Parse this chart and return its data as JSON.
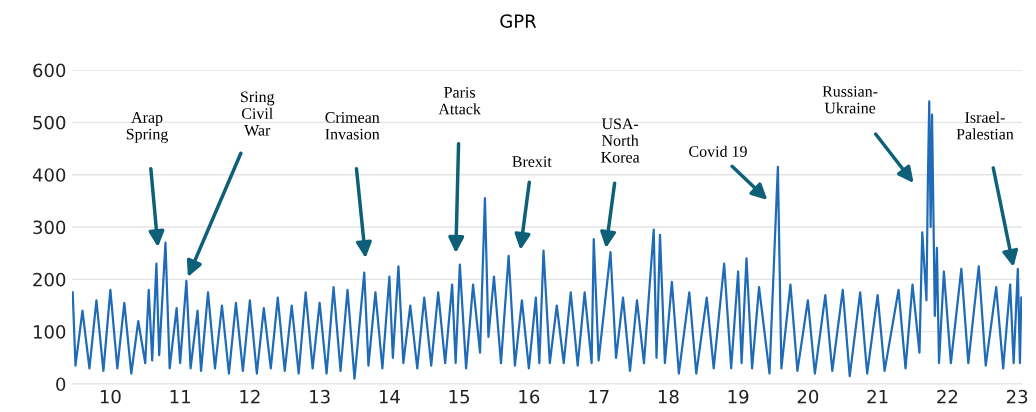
{
  "chart_data": {
    "type": "line",
    "title": "GPR",
    "series": [
      {
        "color": "#1f6bb8",
        "x": [
          9.46,
          9.5,
          9.6,
          9.7,
          9.8,
          9.9,
          10.0,
          10.1,
          10.2,
          10.3,
          10.4,
          10.5,
          10.55,
          10.6,
          10.66,
          10.7,
          10.79,
          10.85,
          10.95,
          11.0,
          11.09,
          11.15,
          11.25,
          11.3,
          11.4,
          11.5,
          11.6,
          11.7,
          11.8,
          11.9,
          12.0,
          12.1,
          12.2,
          12.3,
          12.4,
          12.5,
          12.6,
          12.7,
          12.8,
          12.9,
          13.0,
          13.1,
          13.2,
          13.3,
          13.4,
          13.5,
          13.64,
          13.7,
          13.8,
          13.9,
          14.0,
          14.05,
          14.13,
          14.2,
          14.3,
          14.4,
          14.5,
          14.6,
          14.7,
          14.8,
          14.9,
          14.95,
          15.01,
          15.1,
          15.2,
          15.3,
          15.37,
          15.42,
          15.5,
          15.6,
          15.71,
          15.8,
          15.9,
          16.0,
          16.1,
          16.15,
          16.21,
          16.3,
          16.4,
          16.5,
          16.6,
          16.7,
          16.8,
          16.9,
          16.93,
          17.0,
          17.17,
          17.25,
          17.35,
          17.45,
          17.55,
          17.65,
          17.79,
          17.83,
          17.88,
          17.95,
          18.05,
          18.15,
          18.3,
          18.4,
          18.55,
          18.65,
          18.8,
          18.9,
          19.0,
          19.05,
          19.12,
          19.2,
          19.3,
          19.45,
          19.55,
          19.57,
          19.62,
          19.75,
          19.85,
          20.0,
          20.1,
          20.25,
          20.35,
          20.5,
          20.6,
          20.75,
          20.85,
          21.0,
          21.1,
          21.3,
          21.4,
          21.5,
          21.6,
          21.64,
          21.7,
          21.72,
          21.74,
          21.76,
          21.78,
          21.82,
          21.85,
          21.88,
          21.95,
          22.05,
          22.2,
          22.3,
          22.45,
          22.55,
          22.7,
          22.8,
          22.9,
          22.95,
          23.01,
          23.04,
          23.06
        ],
        "values": [
          175,
          35,
          140,
          30,
          160,
          25,
          180,
          30,
          155,
          20,
          120,
          40,
          180,
          45,
          230,
          55,
          270,
          30,
          145,
          40,
          197,
          30,
          140,
          25,
          175,
          30,
          150,
          20,
          155,
          25,
          160,
          20,
          145,
          30,
          165,
          25,
          150,
          20,
          175,
          30,
          155,
          20,
          185,
          25,
          180,
          10,
          213,
          35,
          175,
          30,
          205,
          50,
          225,
          40,
          150,
          30,
          165,
          35,
          175,
          40,
          190,
          40,
          228,
          30,
          190,
          60,
          355,
          90,
          205,
          40,
          245,
          35,
          160,
          30,
          165,
          40,
          255,
          40,
          150,
          40,
          175,
          35,
          175,
          40,
          277,
          45,
          252,
          50,
          165,
          25,
          160,
          40,
          295,
          50,
          285,
          40,
          195,
          20,
          175,
          20,
          165,
          30,
          230,
          30,
          215,
          40,
          240,
          30,
          185,
          20,
          352,
          415,
          30,
          190,
          25,
          160,
          20,
          170,
          25,
          180,
          15,
          175,
          20,
          170,
          25,
          180,
          30,
          190,
          60,
          290,
          160,
          384,
          540,
          300,
          515,
          130,
          260,
          40,
          215,
          40,
          220,
          40,
          225,
          35,
          185,
          30,
          190,
          40,
          220,
          40,
          165
        ]
      }
    ],
    "xlim": [
      9.45,
      23.07
    ],
    "xticks": [
      10,
      11,
      12,
      13,
      14,
      15,
      16,
      17,
      18,
      19,
      20,
      21,
      22,
      23
    ],
    "ylim": [
      0,
      600
    ],
    "yticks": [
      0,
      100,
      200,
      300,
      400,
      500,
      600
    ],
    "grid": "y",
    "annotations": [
      "Arap\nSpring",
      "Sring\nCivil\nWar",
      "Crimean\nInvasion",
      "Paris\nAttack",
      "Brexit",
      "USA-\nNorth\nKorea",
      "Covid 19",
      "Russian-\nUkraine",
      "Israel-\nPalestian"
    ]
  }
}
